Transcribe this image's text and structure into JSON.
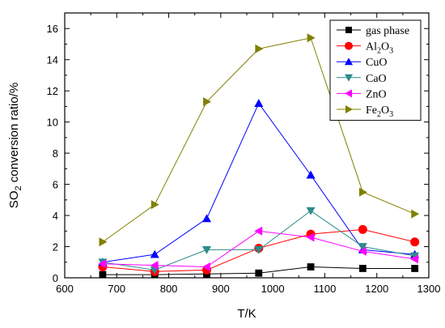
{
  "chart_data": {
    "type": "line",
    "xlabel": "T/K",
    "ylabel": {
      "prefix": "SO",
      "sub": "2",
      "suffix": " conversion  ratio/%"
    },
    "xlim": [
      600,
      1300
    ],
    "ylim": [
      0,
      17
    ],
    "xticks": [
      600,
      700,
      800,
      900,
      1000,
      1100,
      1200,
      1300
    ],
    "yticks": [
      0,
      2,
      4,
      6,
      8,
      10,
      12,
      14,
      16
    ],
    "grid": false,
    "legend": "top-right",
    "series": [
      {
        "label": {
          "main": "gas phase"
        },
        "color": "#000000",
        "marker": "square",
        "x": [
          673,
          773,
          873,
          973,
          1073,
          1173,
          1273
        ],
        "y": [
          0.2,
          0.2,
          0.25,
          0.3,
          0.7,
          0.6,
          0.6
        ]
      },
      {
        "label": {
          "main": "Al",
          "sub1": "2",
          "mid": "O",
          "sub2": "3"
        },
        "color": "#ff0000",
        "marker": "circle",
        "x": [
          673,
          773,
          873,
          973,
          1073,
          1173,
          1273
        ],
        "y": [
          0.7,
          0.4,
          0.5,
          1.9,
          2.8,
          3.1,
          2.3
        ]
      },
      {
        "label": {
          "main": "CuO"
        },
        "color": "#0000ff",
        "marker": "triangle-up",
        "x": [
          673,
          773,
          873,
          973,
          1073,
          1173,
          1273
        ],
        "y": [
          1.0,
          1.5,
          3.8,
          11.2,
          6.6,
          1.8,
          1.5
        ]
      },
      {
        "label": {
          "main": "CaO"
        },
        "color": "#2e8b8b",
        "marker": "triangle-down",
        "x": [
          673,
          773,
          873,
          973,
          1073,
          1173,
          1273
        ],
        "y": [
          1.0,
          0.5,
          1.8,
          1.8,
          4.3,
          2.0,
          1.4
        ]
      },
      {
        "label": {
          "main": "ZnO"
        },
        "color": "#ff00ff",
        "marker": "triangle-left",
        "x": [
          673,
          773,
          873,
          973,
          1073,
          1173,
          1273
        ],
        "y": [
          0.9,
          0.8,
          0.7,
          3.0,
          2.6,
          1.7,
          1.2
        ]
      },
      {
        "label": {
          "main": "Fe",
          "sub1": "2",
          "mid": "O",
          "sub2": "3"
        },
        "color": "#808000",
        "marker": "triangle-right",
        "x": [
          673,
          773,
          873,
          973,
          1073,
          1173,
          1273
        ],
        "y": [
          2.3,
          4.7,
          11.3,
          14.7,
          15.4,
          5.5,
          4.1
        ]
      }
    ]
  }
}
